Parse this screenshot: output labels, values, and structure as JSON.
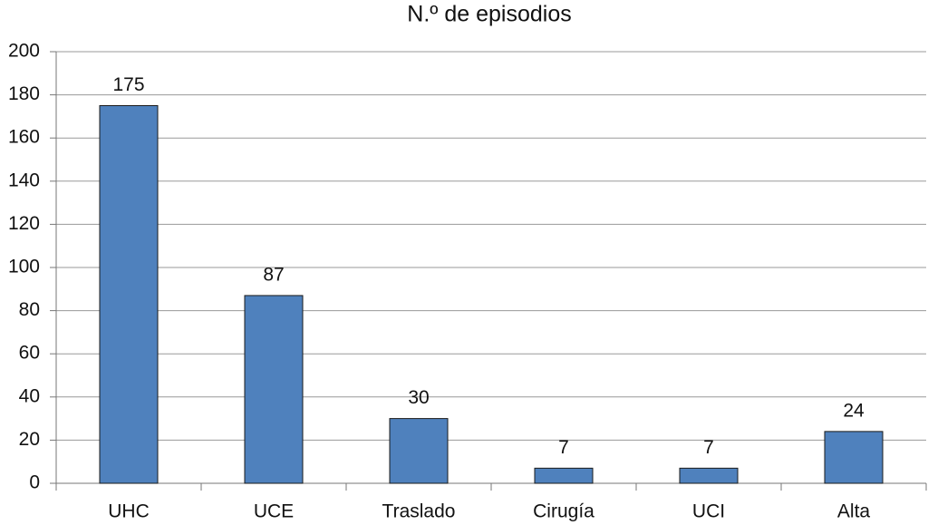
{
  "chart_data": {
    "type": "bar",
    "title": "N.º de episodios",
    "categories": [
      "UHC",
      "UCE",
      "Traslado",
      "Cirugía",
      "UCI",
      "Alta"
    ],
    "values": [
      175,
      87,
      30,
      7,
      7,
      24
    ],
    "color": "#4f81bd",
    "ylim": [
      0,
      200
    ],
    "yticks": [
      0,
      20,
      40,
      60,
      80,
      100,
      120,
      140,
      160,
      180,
      200
    ],
    "grid": true
  }
}
